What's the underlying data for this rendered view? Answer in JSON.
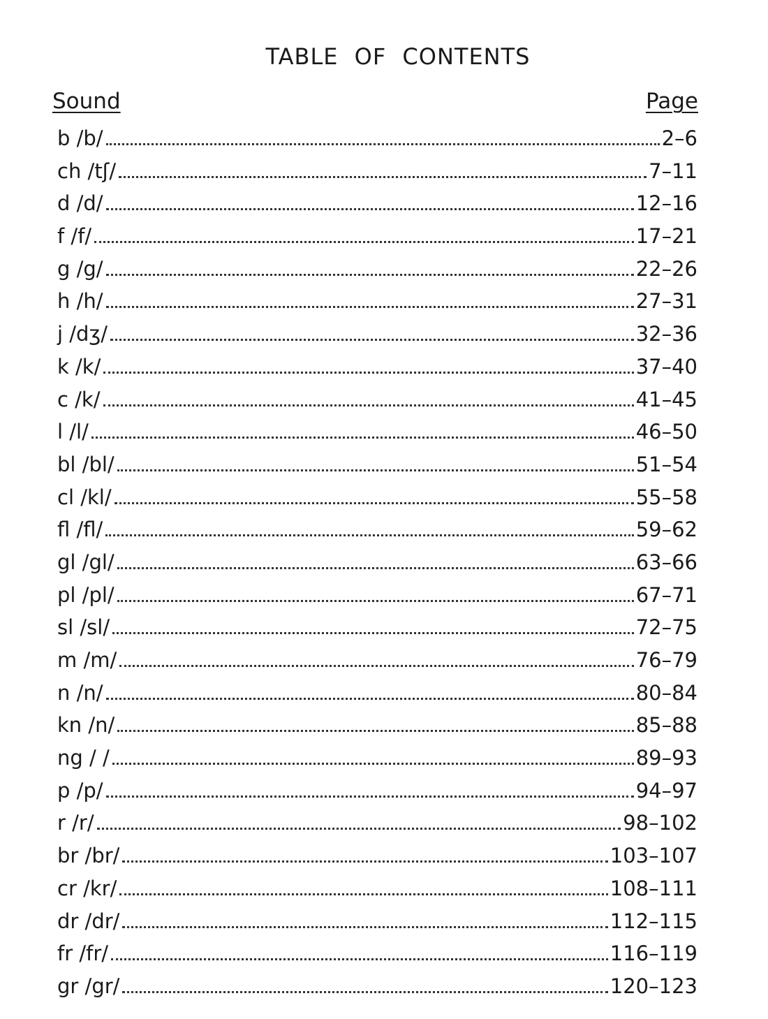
{
  "title": "TABLE OF CONTENTS",
  "headers": {
    "sound": "Sound",
    "page": "Page"
  },
  "entries": [
    {
      "sound": "b /b/",
      "page": "2–6"
    },
    {
      "sound": "ch /tʃ/",
      "page": "7–11"
    },
    {
      "sound": "d /d/",
      "page": "12–16"
    },
    {
      "sound": "f /f/",
      "page": "17–21"
    },
    {
      "sound": "g /g/",
      "page": "22–26"
    },
    {
      "sound": "h /h/",
      "page": "27–31"
    },
    {
      "sound": "j /dʒ/",
      "page": "32–36"
    },
    {
      "sound": "k /k/",
      "page": "37–40"
    },
    {
      "sound": "c /k/",
      "page": "41–45"
    },
    {
      "sound": "l /l/",
      "page": "46–50"
    },
    {
      "sound": "bl /bl/",
      "page": "51–54"
    },
    {
      "sound": "cl /kl/",
      "page": "55–58"
    },
    {
      "sound": "fl /fl/",
      "page": "59–62"
    },
    {
      "sound": "gl /gl/",
      "page": "63–66"
    },
    {
      "sound": "pl /pl/",
      "page": "67–71"
    },
    {
      "sound": "sl /sl/",
      "page": "72–75"
    },
    {
      "sound": "m /m/",
      "page": "76–79"
    },
    {
      "sound": "n /n/",
      "page": "80–84"
    },
    {
      "sound": "kn /n/",
      "page": "85–88"
    },
    {
      "sound": "ng / /",
      "page": "89–93"
    },
    {
      "sound": "p /p/",
      "page": "94–97"
    },
    {
      "sound": "r /r/",
      "page": "98–102"
    },
    {
      "sound": "br /br/",
      "page": "103–107"
    },
    {
      "sound": "cr /kr/",
      "page": "108–111"
    },
    {
      "sound": "dr /dr/",
      "page": "112–115"
    },
    {
      "sound": "fr /fr/",
      "page": "116–119"
    },
    {
      "sound": "gr /gr/",
      "page": "120–123"
    }
  ]
}
